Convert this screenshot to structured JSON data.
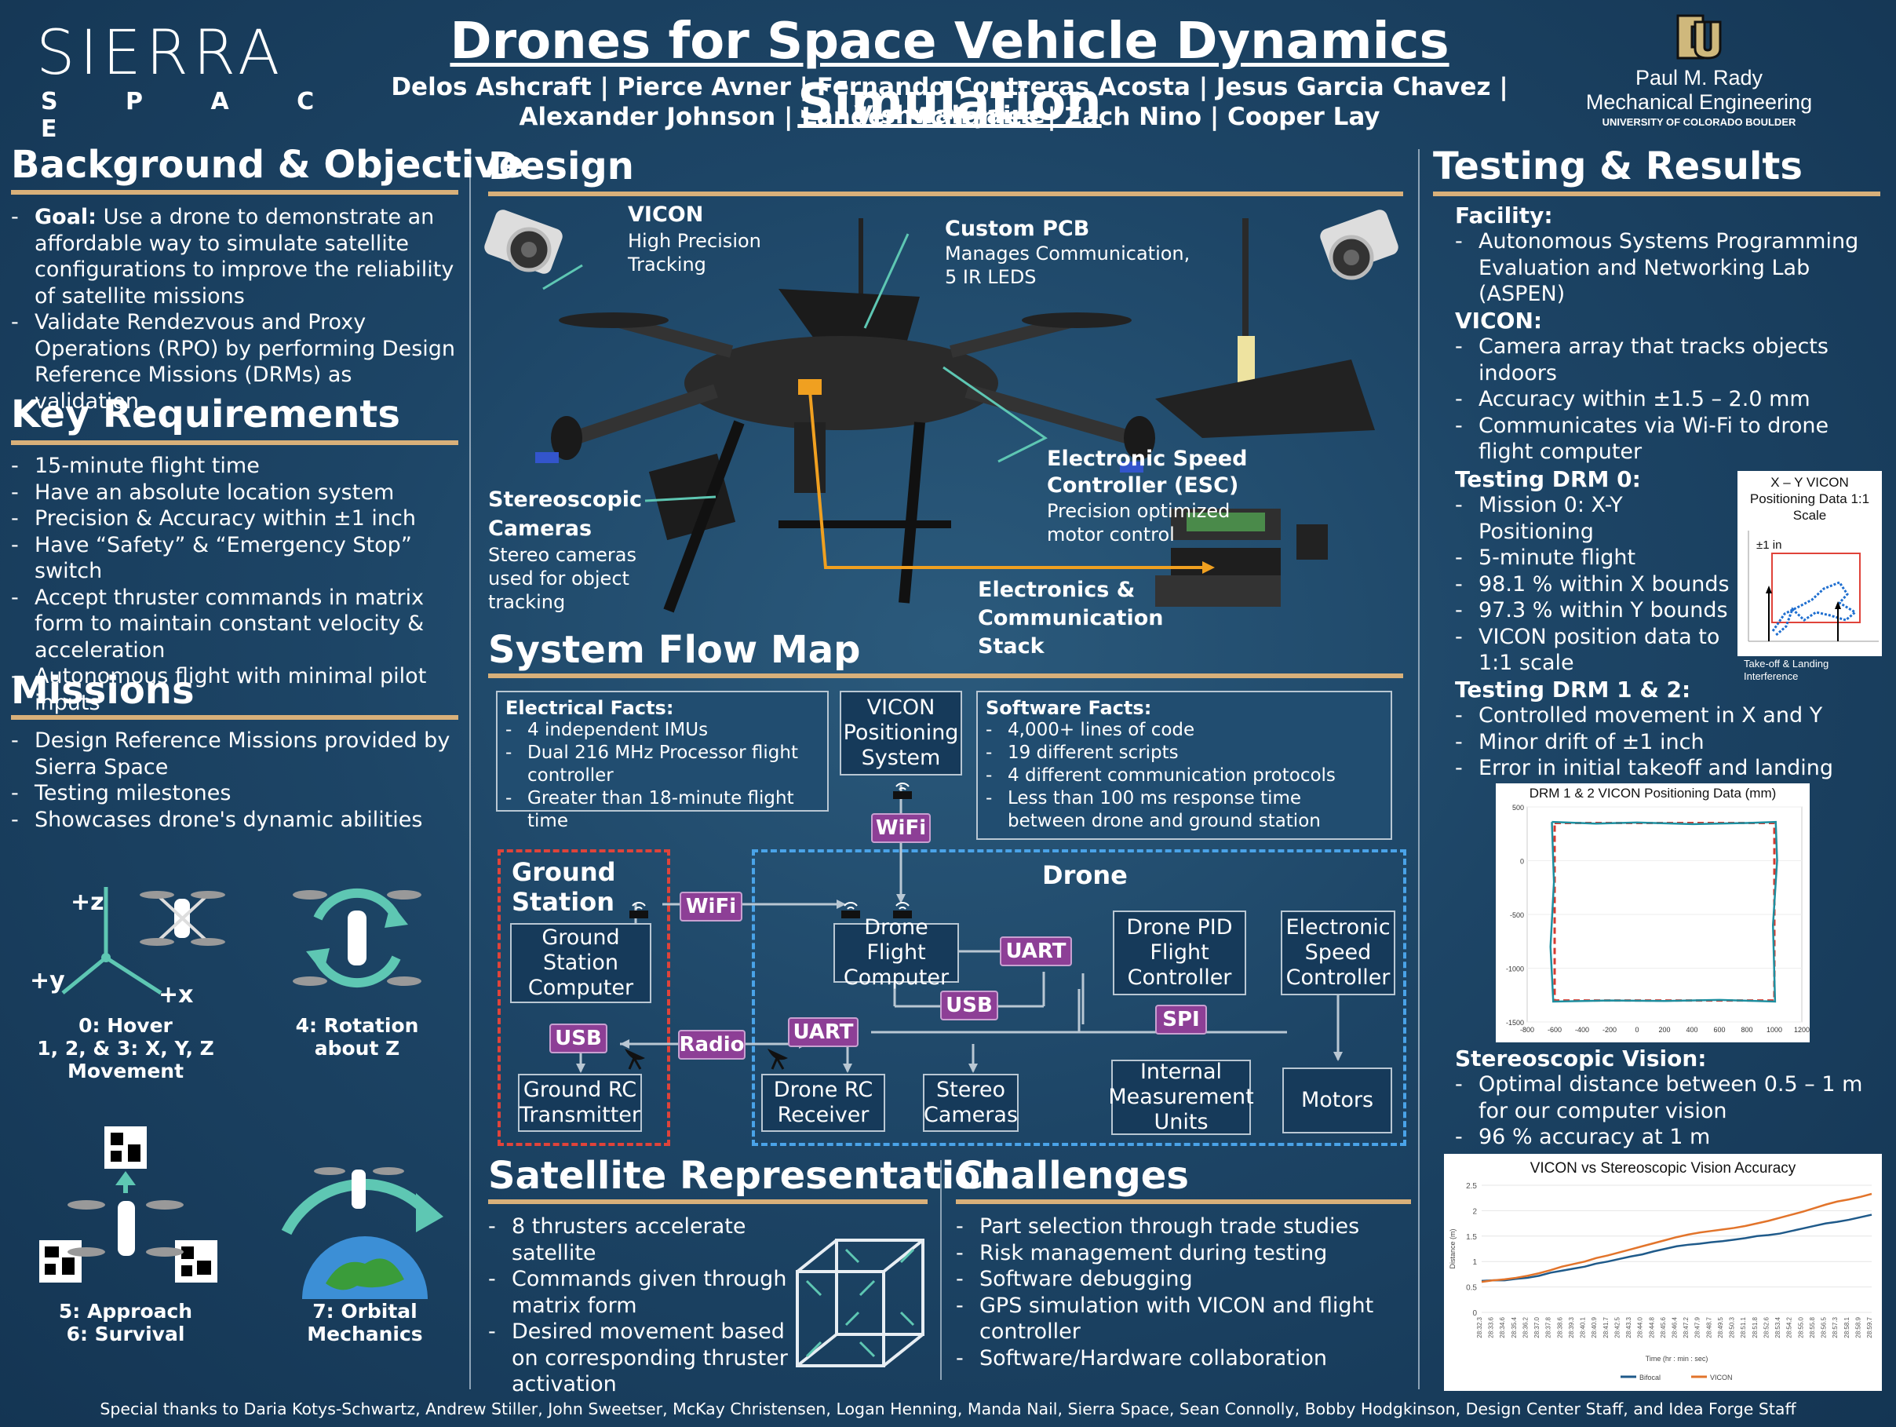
{
  "header": {
    "logo_text": "SIERRA",
    "logo_sub": "S P A C E",
    "title": "Drones for Space Vehicle Dynamics Simulation",
    "authors_line1": "Delos Ashcraft | Pierce Avner | Fernando Contreras Acosta | Jesus Garcia Chavez | Vishwah Jaine",
    "authors_line2": "Alexander Johnson | Lander McNamee | Zach Nino | Cooper Lay",
    "cu_line1": "Paul M. Rady",
    "cu_line2": "Mechanical Engineering",
    "cu_line3": "UNIVERSITY OF COLORADO BOULDER"
  },
  "background": {
    "title": "Background & Objective",
    "goal_label": "Goal:",
    "goal_text": " Use a drone to demonstrate an affordable way to simulate satellite configurations to improve the reliability of satellite missions",
    "item2": "Validate Rendezvous and Proxy Operations (RPO) by performing Design Reference Missions (DRMs) as validation"
  },
  "requirements": {
    "title": "Key Requirements",
    "items": [
      "15-minute flight time",
      "Have an absolute location system",
      "Precision & Accuracy within  ±1 inch",
      "Have “Safety” & “Emergency Stop” switch",
      "Accept thruster commands in matrix form to maintain constant velocity & acceleration",
      "Autonomous flight with minimal pilot inputs"
    ]
  },
  "missions": {
    "title": "Missions",
    "items": [
      "Design Reference Missions provided by Sierra Space",
      "Testing milestones",
      "Showcases drone's dynamic abilities"
    ],
    "axis_z": "+z",
    "axis_y": "+y",
    "axis_x": "+x",
    "m0_line1": "0: Hover",
    "m0_line2": "1, 2, & 3: X, Y, Z Movement",
    "m4_line1": "4: Rotation",
    "m4_line2": "about Z",
    "m5_line1": "5: Approach",
    "m5_line2": "6: Survival",
    "m7_line1": "7: Orbital",
    "m7_line2": "Mechanics"
  },
  "design": {
    "title": "Design",
    "vicon_title": "VICON",
    "vicon_text": "High Precision Tracking",
    "pcb_title": "Custom PCB",
    "pcb_text": "Manages Communication, 5 IR LEDS",
    "stereo_title": "Stereoscopic Cameras",
    "stereo_text": "Stereo cameras used for object tracking",
    "esc_title": "Electronic Speed Controller (ESC)",
    "esc_text": "Precision optimized motor control",
    "stack_title": "Electronics & Communication Stack"
  },
  "flow": {
    "title": "System Flow Map",
    "electrical_title": "Electrical Facts:",
    "electrical": [
      "4 independent IMUs",
      "Dual 216 MHz Processor flight controller",
      "Greater than 18-minute flight time"
    ],
    "software_title": "Software Facts:",
    "software": [
      "4,000+ lines of code",
      "19 different scripts",
      "4 different communication protocols",
      "Less than 100 ms response time between drone and ground station"
    ],
    "vicon_box": "VICON Positioning System",
    "ground_title": "Ground Station",
    "drone_title": "Drone",
    "gs_computer": "Ground Station Computer",
    "gs_rc": "Ground RC Transmitter",
    "flight_computer": "Drone Flight Computer",
    "pid": "Drone PID Flight Controller",
    "esc": "Electronic Speed Controller",
    "rc_receiver": "Drone RC Receiver",
    "stereo": "Stereo Cameras",
    "imu": "Internal Measurement Units",
    "motors": "Motors",
    "tag_wifi": "WiFi",
    "tag_usb": "USB",
    "tag_radio": "Radio",
    "tag_uart": "UART",
    "tag_spi": "SPI"
  },
  "satellite": {
    "title": "Satellite Representation",
    "items": [
      "8 thrusters accelerate satellite",
      "Commands given through matrix form",
      "Desired movement based on corresponding thruster activation"
    ]
  },
  "challenges": {
    "title": "Challenges",
    "items": [
      "Part selection through trade studies",
      "Risk management during testing",
      "Software debugging",
      "GPS simulation with VICON and flight controller",
      "Software/Hardware collaboration"
    ]
  },
  "testing": {
    "title": "Testing & Results",
    "facility_label": "Facility:",
    "facility_items": [
      "Autonomous Systems Programming Evaluation and Networking Lab (ASPEN)"
    ],
    "vicon_label": "VICON:",
    "vicon_items": [
      "Camera array that tracks objects indoors",
      "Accuracy within ±1.5 – 2.0 mm",
      "Communicates via Wi-Fi to drone flight computer"
    ],
    "drm0_label": "Testing DRM 0:",
    "drm0_items": [
      "Mission 0: X-Y Positioning",
      "5-minute flight",
      "98.1 % within X bounds",
      "97.3 % within Y bounds",
      "VICON position data to 1:1 scale"
    ],
    "drm12_label": "Testing DRM 1 & 2:",
    "drm12_items": [
      "Controlled movement in X and Y",
      "Minor drift of ±1 inch",
      "Error in initial takeoff and landing"
    ],
    "stereo_label": "Stereoscopic Vision:",
    "stereo_items": [
      "Optimal distance between 0.5 – 1 m for our computer vision",
      "96 % accuracy at 1 m"
    ],
    "xy_title": "X – Y VICON Positioning Data 1:1 Scale",
    "xy_in": "±1 in",
    "xy_note": "Take-off & Landing Interference"
  },
  "footer": {
    "thanks": "Special thanks to Daria Kotys-Schwartz, Andrew Stiller, John Sweetser, McKay Christensen, Logan Henning, Manda Nail, Sierra Space, Sean Connolly, Bobby Hodgkinson, Design Center Staff, and Idea Forge Staff"
  },
  "colors": {
    "accent": "#d8b07a",
    "tag": "#8d3f96",
    "teal": "#58c4b4",
    "ground_border": "#e0433a",
    "drone_border": "#4aa3e8"
  },
  "chart_data": [
    {
      "type": "line",
      "title": "DRM 1 & 2 VICON Positioning Data (mm)",
      "xlim": [
        -800,
        1200
      ],
      "ylim": [
        -1500,
        500
      ],
      "x_ticks": [
        -800,
        -600,
        -400,
        -200,
        0,
        200,
        400,
        600,
        800,
        1000,
        1200
      ],
      "y_ticks": [
        500,
        0,
        -500,
        -1000,
        -1500
      ],
      "series": [
        {
          "x": [
            -600,
            1000,
            1000,
            -600,
            -600
          ],
          "y": [
            350,
            350,
            -1300,
            -1300,
            350
          ]
        },
        {
          "x": [
            -620,
            -300,
            0,
            400,
            800,
            1010,
            1020,
            990,
            1005,
            600,
            200,
            -200,
            -610,
            -630,
            -605,
            -620
          ],
          "y": [
            360,
            345,
            355,
            340,
            350,
            360,
            0,
            -600,
            -1310,
            -1295,
            -1305,
            -1300,
            -1310,
            -800,
            -200,
            360
          ]
        }
      ]
    },
    {
      "type": "line",
      "title": "VICON vs Stereoscopic Vision Accuracy",
      "ylabel": "Distance (m)",
      "xlabel": "Time (hr : min : sec)",
      "ylim": [
        0,
        2.5
      ],
      "y_ticks": [
        0,
        0.5,
        1,
        1.5,
        2,
        2.5
      ],
      "categories": [
        "28:32.3",
        "28:33.6",
        "28:34.6",
        "28:35.4",
        "28:36.2",
        "28:37.0",
        "28:37.8",
        "28:38.6",
        "28:39.3",
        "28:40.1",
        "28:40.9",
        "28:41.7",
        "28:42.5",
        "28:43.3",
        "28:44.0",
        "28:44.8",
        "28:45.6",
        "28:46.4",
        "28:47.2",
        "28:47.9",
        "28:48.7",
        "28:49.5",
        "28:50.3",
        "28:51.1",
        "28:51.8",
        "28:52.6",
        "28:53.4",
        "28:54.2",
        "28:55.0",
        "28:55.8",
        "28:56.5",
        "28:57.3",
        "28:58.1",
        "28:58.9",
        "28:59.7"
      ],
      "series": [
        {
          "name": "Bifocal",
          "color": "#1f5a8a",
          "values": [
            0.62,
            0.63,
            0.63,
            0.66,
            0.68,
            0.72,
            0.78,
            0.82,
            0.86,
            0.9,
            0.96,
            1.0,
            1.05,
            1.1,
            1.14,
            1.2,
            1.25,
            1.3,
            1.33,
            1.35,
            1.38,
            1.4,
            1.43,
            1.46,
            1.5,
            1.52,
            1.55,
            1.6,
            1.65,
            1.7,
            1.75,
            1.78,
            1.82,
            1.87,
            1.92
          ]
        },
        {
          "name": "VICON",
          "color": "#e2742b",
          "values": [
            0.6,
            0.63,
            0.65,
            0.68,
            0.72,
            0.77,
            0.83,
            0.9,
            0.95,
            1.0,
            1.07,
            1.12,
            1.18,
            1.24,
            1.3,
            1.36,
            1.42,
            1.48,
            1.53,
            1.57,
            1.6,
            1.63,
            1.66,
            1.7,
            1.75,
            1.8,
            1.86,
            1.92,
            1.98,
            2.05,
            2.12,
            2.18,
            2.22,
            2.27,
            2.33
          ]
        }
      ]
    }
  ]
}
